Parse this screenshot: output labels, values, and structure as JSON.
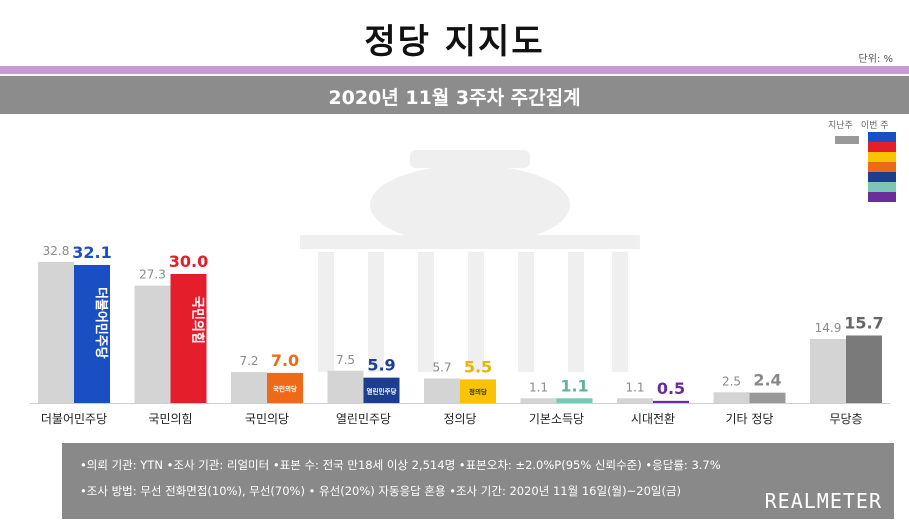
{
  "header": {
    "title": "정당 지지도",
    "unit": "단위: %",
    "subtitle": "2020년 11월 3주차 주간집계"
  },
  "legend": {
    "last_week": "지난주",
    "this_week": "이번 주",
    "last_week_color": "#999999",
    "swatch_colors": [
      "#1a4fc4",
      "#e41e2b",
      "#f9c300",
      "#ee6a18",
      "#1d3d8f",
      "#7bc6b4",
      "#6a2e9a"
    ]
  },
  "chart_data": {
    "type": "bar",
    "title": "정당 지지도",
    "subtitle": "2020년 11월 3주차 주간집계",
    "categories": [
      "더불어민주당",
      "국민의힘",
      "국민의당",
      "열린민주당",
      "정의당",
      "기본소득당",
      "시대전환",
      "기타 정당",
      "무당층"
    ],
    "series": [
      {
        "name": "지난주",
        "values": [
          32.8,
          27.3,
          7.2,
          7.5,
          5.7,
          1.1,
          1.1,
          2.5,
          14.9
        ]
      },
      {
        "name": "이번 주",
        "values": [
          32.1,
          30.0,
          7.0,
          5.9,
          5.5,
          1.1,
          0.5,
          2.4,
          15.7
        ]
      }
    ],
    "value_labels_prev": [
      "32.8",
      "27.3",
      "7.2",
      "7.5",
      "5.7",
      "1.1",
      "1.1",
      "2.5",
      "14.9"
    ],
    "value_labels_cur": [
      "32.1",
      "30.0",
      "7.0",
      "5.9",
      "5.5",
      "1.1",
      "0.5",
      "2.4",
      "15.7"
    ],
    "colors_cur": [
      "#1a4fc4",
      "#e41e2b",
      "#ee6a18",
      "#1d3d8f",
      "#f9c300",
      "#7bc6b4",
      "#6a2e9a",
      "#999999",
      "#7a7a7a"
    ],
    "label_colors_cur": [
      "#1a4fc4",
      "#e41e2b",
      "#ee6a18",
      "#1d3d8f",
      "#e8b400",
      "#5fb3a0",
      "#6a2e9a",
      "#888888",
      "#666666"
    ],
    "logo_text": [
      "더불어민주당",
      "국민의힘",
      "국민의당",
      "열린민주당",
      "정의당",
      "",
      "",
      "",
      ""
    ],
    "ylim": [
      0,
      40
    ]
  },
  "footer": {
    "line1": "•의뢰 기관: YTN  •조사 기관: 리얼미터  •표본 수: 전국 만18세 이상 2,514명  •표본오차: ±2.0%P(95% 신뢰수준)  •응답률: 3.7%",
    "line2": "•조사 방법: 무선 전화면접(10%), 무선(70%) • 유선(20%) 자동응답 혼용  •조사 기간: 2020년 11월 16일(월)~20일(금)",
    "brand": "REALMETER"
  }
}
